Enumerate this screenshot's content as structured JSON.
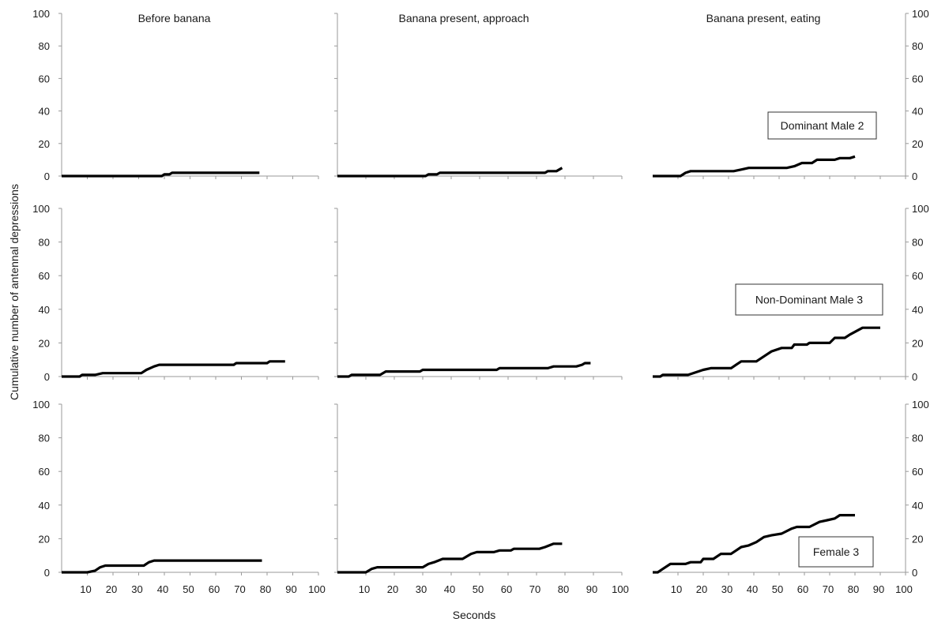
{
  "chart_data": {
    "type": "line",
    "xlabel": "Seconds",
    "ylabel": "Cumulative number of antennal depressions",
    "xlim": [
      0,
      100
    ],
    "ylim": [
      0,
      100
    ],
    "x_ticks": [
      "10",
      "20",
      "30",
      "40",
      "50",
      "60",
      "70",
      "80",
      "90",
      "100"
    ],
    "y_ticks": [
      "0",
      "20",
      "40",
      "60",
      "80",
      "100"
    ],
    "columns": [
      "Before banana",
      "Banana present, approach",
      "Banana present, eating"
    ],
    "rows": [
      "Dominant Male 2",
      "Non-Dominant Male 3",
      "Female 3"
    ],
    "line_color": "#000000",
    "grid": false,
    "panels": [
      {
        "row": 0,
        "col": 0,
        "series": [
          [
            0,
            0
          ],
          [
            39,
            0
          ],
          [
            40,
            1
          ],
          [
            42,
            1
          ],
          [
            43,
            2
          ],
          [
            77,
            2
          ]
        ]
      },
      {
        "row": 0,
        "col": 1,
        "series": [
          [
            0,
            0
          ],
          [
            31,
            0
          ],
          [
            32,
            1
          ],
          [
            35,
            1
          ],
          [
            36,
            2
          ],
          [
            73,
            2
          ],
          [
            74,
            3
          ],
          [
            77,
            3
          ],
          [
            79,
            5
          ]
        ]
      },
      {
        "row": 0,
        "col": 2,
        "series": [
          [
            0,
            0
          ],
          [
            11,
            0
          ],
          [
            13,
            2
          ],
          [
            15,
            3
          ],
          [
            32,
            3
          ],
          [
            35,
            4
          ],
          [
            38,
            5
          ],
          [
            53,
            5
          ],
          [
            56,
            6
          ],
          [
            59,
            8
          ],
          [
            63,
            8
          ],
          [
            65,
            10
          ],
          [
            72,
            10
          ],
          [
            74,
            11
          ],
          [
            78,
            11
          ],
          [
            80,
            12
          ]
        ]
      },
      {
        "row": 1,
        "col": 0,
        "series": [
          [
            0,
            0
          ],
          [
            7,
            0
          ],
          [
            8,
            1
          ],
          [
            13,
            1
          ],
          [
            16,
            2
          ],
          [
            31,
            2
          ],
          [
            33,
            4
          ],
          [
            36,
            6
          ],
          [
            38,
            7
          ],
          [
            67,
            7
          ],
          [
            68,
            8
          ],
          [
            80,
            8
          ],
          [
            81,
            9
          ],
          [
            87,
            9
          ]
        ]
      },
      {
        "row": 1,
        "col": 1,
        "series": [
          [
            0,
            0
          ],
          [
            4,
            0
          ],
          [
            5,
            1
          ],
          [
            15,
            1
          ],
          [
            17,
            3
          ],
          [
            29,
            3
          ],
          [
            30,
            4
          ],
          [
            56,
            4
          ],
          [
            57,
            5
          ],
          [
            74,
            5
          ],
          [
            76,
            6
          ],
          [
            84,
            6
          ],
          [
            86,
            7
          ],
          [
            87,
            8
          ],
          [
            89,
            8
          ]
        ]
      },
      {
        "row": 1,
        "col": 2,
        "series": [
          [
            0,
            0
          ],
          [
            3,
            0
          ],
          [
            4,
            1
          ],
          [
            14,
            1
          ],
          [
            18,
            3
          ],
          [
            20,
            4
          ],
          [
            23,
            5
          ],
          [
            31,
            5
          ],
          [
            33,
            7
          ],
          [
            35,
            9
          ],
          [
            41,
            9
          ],
          [
            45,
            13
          ],
          [
            47,
            15
          ],
          [
            51,
            17
          ],
          [
            55,
            17
          ],
          [
            56,
            19
          ],
          [
            61,
            19
          ],
          [
            62,
            20
          ],
          [
            70,
            20
          ],
          [
            72,
            23
          ],
          [
            76,
            23
          ],
          [
            78,
            25
          ],
          [
            83,
            29
          ],
          [
            90,
            29
          ]
        ]
      },
      {
        "row": 2,
        "col": 0,
        "series": [
          [
            0,
            0
          ],
          [
            10,
            0
          ],
          [
            13,
            1
          ],
          [
            15,
            3
          ],
          [
            17,
            4
          ],
          [
            32,
            4
          ],
          [
            34,
            6
          ],
          [
            36,
            7
          ],
          [
            78,
            7
          ]
        ]
      },
      {
        "row": 2,
        "col": 1,
        "series": [
          [
            0,
            0
          ],
          [
            10,
            0
          ],
          [
            12,
            2
          ],
          [
            14,
            3
          ],
          [
            30,
            3
          ],
          [
            32,
            5
          ],
          [
            34,
            6
          ],
          [
            37,
            8
          ],
          [
            44,
            8
          ],
          [
            47,
            11
          ],
          [
            49,
            12
          ],
          [
            55,
            12
          ],
          [
            57,
            13
          ],
          [
            61,
            13
          ],
          [
            62,
            14
          ],
          [
            71,
            14
          ],
          [
            73,
            15
          ],
          [
            76,
            17
          ],
          [
            79,
            17
          ]
        ]
      },
      {
        "row": 2,
        "col": 2,
        "series": [
          [
            0,
            0
          ],
          [
            2,
            0
          ],
          [
            4,
            2
          ],
          [
            7,
            5
          ],
          [
            13,
            5
          ],
          [
            15,
            6
          ],
          [
            19,
            6
          ],
          [
            20,
            8
          ],
          [
            24,
            8
          ],
          [
            27,
            11
          ],
          [
            31,
            11
          ],
          [
            33,
            13
          ],
          [
            35,
            15
          ],
          [
            38,
            16
          ],
          [
            41,
            18
          ],
          [
            44,
            21
          ],
          [
            47,
            22
          ],
          [
            51,
            23
          ],
          [
            55,
            26
          ],
          [
            57,
            27
          ],
          [
            62,
            27
          ],
          [
            66,
            30
          ],
          [
            69,
            31
          ],
          [
            72,
            32
          ],
          [
            74,
            34
          ],
          [
            80,
            34
          ]
        ]
      }
    ]
  }
}
